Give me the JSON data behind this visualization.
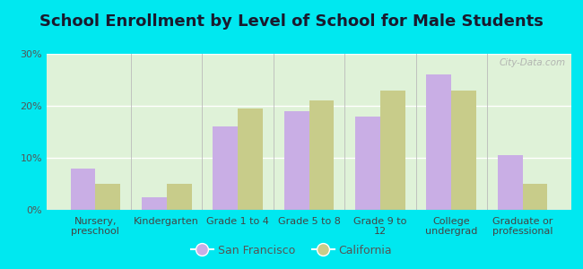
{
  "title": "School Enrollment by Level of School for Male Students",
  "categories": [
    "Nursery,\npreschool",
    "Kindergarten",
    "Grade 1 to 4",
    "Grade 5 to 8",
    "Grade 9 to\n12",
    "College\nundergrad",
    "Graduate or\nprofessional"
  ],
  "sf_values": [
    8.0,
    2.5,
    16.0,
    19.0,
    18.0,
    26.0,
    10.5
  ],
  "ca_values": [
    5.0,
    5.0,
    19.5,
    21.0,
    23.0,
    23.0,
    5.0
  ],
  "sf_color": "#c9aee5",
  "ca_color": "#c8cc8a",
  "background_outer": "#00e8f0",
  "background_inner": "#dff2d8",
  "ylim": [
    0,
    30
  ],
  "yticks": [
    0,
    10,
    20,
    30
  ],
  "legend_labels": [
    "San Francisco",
    "California"
  ],
  "bar_width": 0.35,
  "title_fontsize": 13,
  "tick_fontsize": 8,
  "legend_fontsize": 9,
  "watermark": "City-Data.com"
}
